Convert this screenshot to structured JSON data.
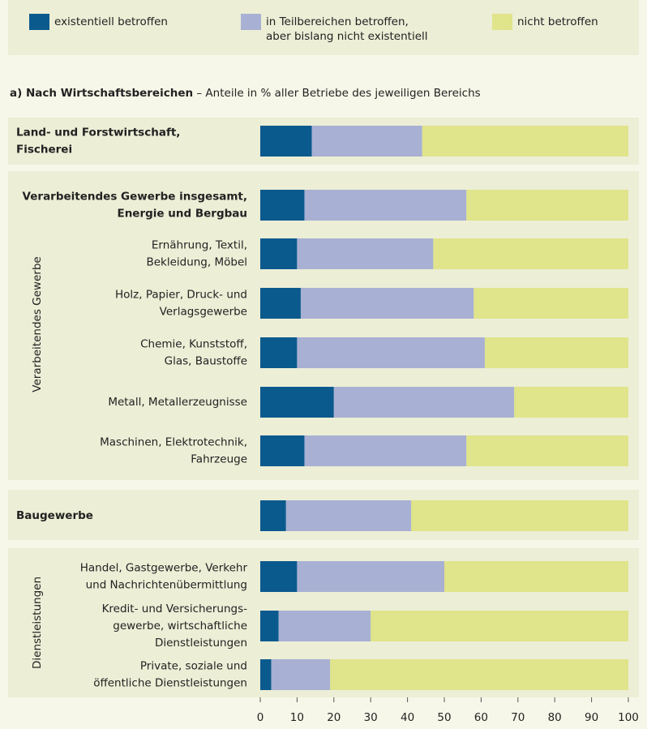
{
  "chart_data": {
    "type": "stacked-bar-horizontal",
    "title": "a) Nach Wirtschaftsbereichen",
    "subtitle": "– Anteile in % aller Betriebe des jeweiligen Bereichs",
    "groups": [
      "Verarbeitendes Gewerbe",
      "Dienstleistungen"
    ],
    "categories": [
      "Land- und Forstwirtschaft,\nFischerei",
      "Verarbeitendes Gewerbe insgesamt,\nEnergie und Bergbau",
      "Ernährung, Textil,\nBekleidung, Möbel",
      "Holz, Papier, Druck- und\nVerlagsgewerbe",
      "Chemie, Kunststoff,\nGlas, Baustoffe",
      "Metall, Metallerzeugnisse",
      "Maschinen, Elektrotechnik,\nFahrzeuge",
      "Baugewerbe",
      "Handel, Gastgewerbe, Verkehr\nund Nachrichtenübermittlung",
      "Kredit- und Versicherungs-\ngewerbe, wirtschaftliche\nDienstleistungen",
      "Private, soziale und\nöffentliche Dienstleistungen"
    ],
    "series": [
      {
        "name": "existentiell betroffen",
        "color": "#0b5a8e",
        "values": [
          14,
          12,
          10,
          11,
          10,
          20,
          12,
          7,
          10,
          5,
          3
        ]
      },
      {
        "name": "in Teilbereichen betroffen,\naber bislang nicht existentiell",
        "color": "#a8b0d3",
        "values": [
          30,
          44,
          37,
          47,
          51,
          49,
          44,
          34,
          40,
          25,
          16
        ]
      },
      {
        "name": "nicht betroffen",
        "color": "#e0e48a",
        "values": [
          56,
          44,
          53,
          42,
          39,
          31,
          44,
          59,
          50,
          70,
          81
        ]
      }
    ],
    "xlim": [
      0,
      100
    ],
    "xticks": [
      0,
      10,
      20,
      30,
      40,
      50,
      60,
      70,
      80,
      90,
      100
    ]
  }
}
